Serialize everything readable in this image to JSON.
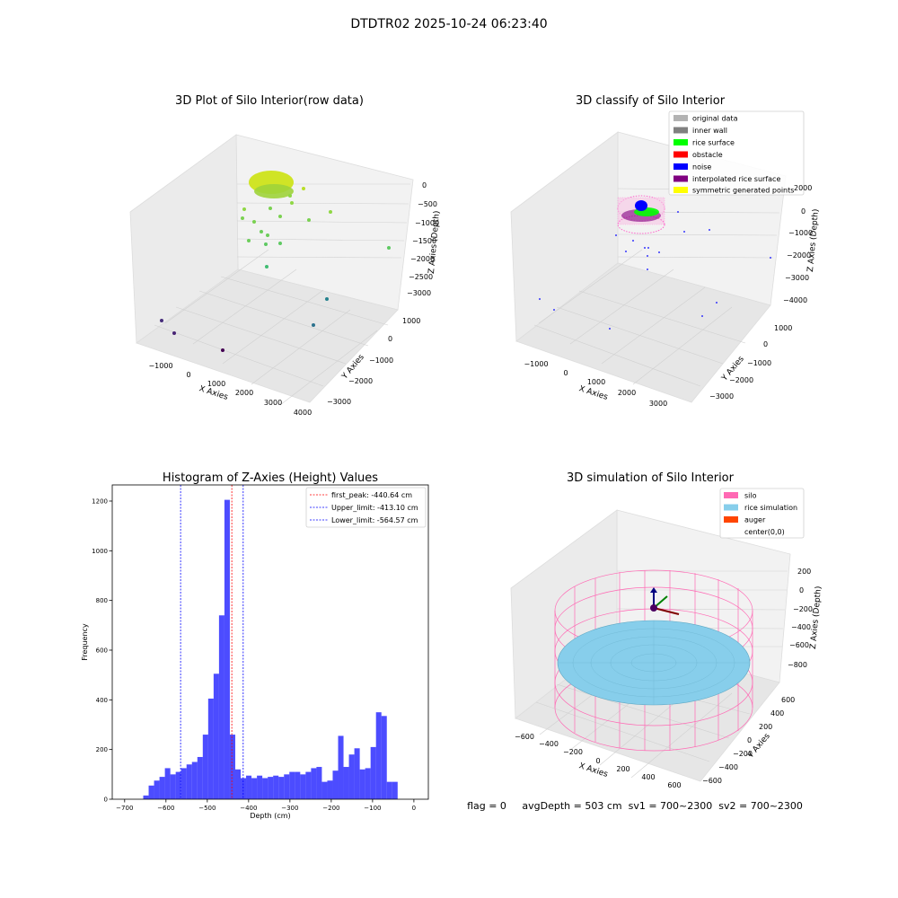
{
  "figure": {
    "suptitle": "DTDTR02 2025-10-24 06:23:40",
    "status_line": "flag = 0     avgDepth = 503 cm  sv1 = 700~2300  sv2 = 700~2300"
  },
  "colors": {
    "original_data": "#b3b3b3",
    "inner_wall": "#808080",
    "rice_surface": "#00ff00",
    "obstacle": "#ff0000",
    "noise": "#0000ff",
    "interpolated_rice_surface": "#800080",
    "symmetric_generated_points": "#ffff00",
    "silo": "#ff69b4",
    "rice_simulation": "#87ceeb",
    "auger": "#ff4500",
    "hist_bars": "#0000ff",
    "first_peak_line": "#ff0000",
    "limit_lines": "#0000ff"
  },
  "chart_data": [
    {
      "type": "scatter",
      "panel": "top-left",
      "title": "3D Plot of Silo Interior(row data)",
      "xlabel": "X Axies",
      "ylabel": "Y Axies",
      "zlabel": "Z Axies (Depth)",
      "x_ticks": [
        "−1000",
        "0",
        "1000",
        "2000",
        "3000",
        "4000"
      ],
      "y_ticks": [
        "1000",
        "0",
        "−1000",
        "−2000",
        "−3000"
      ],
      "z_ticks": [
        "0",
        "−500",
        "−1000",
        "−1500",
        "−2000",
        "−2500",
        "−3000"
      ],
      "colormap": "viridis",
      "grid": true
    },
    {
      "type": "scatter",
      "panel": "top-right",
      "title": "3D classify of Silo Interior",
      "xlabel": "X Axies",
      "ylabel": "Y Axies",
      "zlabel": "Z Axies (Depth)",
      "x_ticks": [
        "−1000",
        "0",
        "1000",
        "2000",
        "3000"
      ],
      "y_ticks": [
        "1000",
        "0",
        "−1000",
        "−2000",
        "−3000"
      ],
      "z_ticks": [
        "2000",
        "0",
        "−1000",
        "−2000",
        "−3000",
        "−4000"
      ],
      "legend": [
        "original data",
        "inner wall",
        "rice surface",
        "obstacle",
        "noise",
        "interpolated rice surface",
        "symmetric generated points"
      ],
      "legend_loc": "top-right",
      "grid": true
    },
    {
      "type": "bar",
      "panel": "bottom-left",
      "title": "Histogram of Z-Axies (Height) Values",
      "xlabel": "Depth (cm)",
      "ylabel": "Frequency",
      "xlim": [
        -730,
        35
      ],
      "ylim": [
        0,
        1265
      ],
      "x_ticks": [
        -700,
        -600,
        -500,
        -400,
        -300,
        -200,
        -100,
        0
      ],
      "x_tick_labels": [
        "−700",
        "−600",
        "−500",
        "−400",
        "−300",
        "−200",
        "−100",
        "0"
      ],
      "y_ticks": [
        0,
        200,
        400,
        600,
        800,
        1000,
        1200
      ],
      "bin_start": -655,
      "bin_width": 13.1,
      "values": [
        15,
        55,
        75,
        90,
        125,
        100,
        110,
        125,
        140,
        150,
        170,
        260,
        405,
        505,
        740,
        1205,
        260,
        120,
        85,
        95,
        85,
        95,
        85,
        90,
        95,
        90,
        100,
        110,
        110,
        100,
        110,
        125,
        130,
        70,
        75,
        115,
        255,
        130,
        180,
        205,
        120,
        125,
        210,
        350,
        335,
        70,
        70
      ],
      "lines": [
        {
          "label": "first_peak: -440.64 cm",
          "x": -440.64,
          "color": "#ff0000"
        },
        {
          "label": "Upper_limit: -413.10 cm",
          "x": -413.1,
          "color": "#0000ff"
        },
        {
          "label": "Lower_limit: -564.57 cm",
          "x": -564.57,
          "color": "#0000ff"
        }
      ],
      "legend_loc": "top-right"
    },
    {
      "type": "surface",
      "panel": "bottom-right",
      "title": "3D simulation of Silo Interior",
      "xlabel": "X Axies",
      "ylabel": "Y Axies",
      "zlabel": "Z Axies (Depth)",
      "x_ticks": [
        "−600",
        "−400",
        "−200",
        "0",
        "200",
        "400",
        "600"
      ],
      "y_ticks": [
        "600",
        "400",
        "200",
        "0",
        "−200",
        "−400",
        "−600"
      ],
      "z_ticks": [
        "200",
        "0",
        "−200",
        "−400",
        "−600",
        "−800"
      ],
      "legend": [
        "silo",
        "rice simulation",
        "auger",
        "center(0,0)"
      ],
      "legend_loc": "top-right",
      "avg_depth_cm": 503
    }
  ]
}
